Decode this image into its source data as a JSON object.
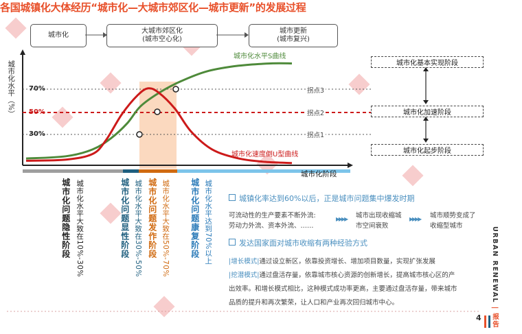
{
  "title": "各国城镇化大体经历“城市化—大城市郊区化—城市更新”的发展过程",
  "flow": {
    "box1": "城市化",
    "box2_line1": "大城市郊区化",
    "box2_line2": "(城市空心化)",
    "box3_line1": "城市更新",
    "box3_line2": "(城市复兴)"
  },
  "chart": {
    "ylabel": "城市化水平（%）",
    "xlabel": "城市化阶段",
    "y_ticks": [
      "70%",
      "50%",
      "30%"
    ],
    "s_curve_label": "城市化水平S曲线",
    "u_curve_label": "城市化速度倒U型曲线",
    "inflection_labels": [
      "拐点3",
      "拐点2",
      "拐点1"
    ]
  },
  "chart_data": {
    "type": "line",
    "title": "",
    "xlabel": "城市化阶段",
    "ylabel": "城市化水平（%）",
    "y_ticks": [
      30,
      50,
      70
    ],
    "series": [
      {
        "name": "城市化水平S曲线",
        "color": "#4e8a3a",
        "x": [
          0,
          15,
          25,
          32,
          38,
          43,
          50,
          58,
          68,
          80,
          92,
          100
        ],
        "y": [
          6,
          8,
          14,
          24,
          37,
          52,
          64,
          74,
          83,
          88,
          90,
          90
        ]
      },
      {
        "name": "城市化速度倒U型曲线",
        "color": "#cc1a1a",
        "x": [
          0,
          15,
          25,
          30,
          36,
          42,
          46,
          50,
          56,
          62,
          70,
          80,
          90,
          100
        ],
        "y": [
          4,
          5,
          10,
          22,
          45,
          62,
          68,
          64,
          50,
          30,
          14,
          6,
          3,
          2
        ]
      }
    ],
    "inflection_points": [
      {
        "label": "拐点1",
        "y": 30
      },
      {
        "label": "拐点2",
        "y": 50
      },
      {
        "label": "拐点3",
        "y": 70
      }
    ]
  },
  "right_stages": {
    "top": "城市化基本实现阶段",
    "middle": "城市化加速阶段",
    "bottom": "城市化起步阶段"
  },
  "phases": [
    {
      "title": "城市化问题隐性阶段",
      "desc": "城市化水平大致在10%-30%",
      "color": "#222222"
    },
    {
      "title": "城市化问题显性阶段",
      "desc": "城市化水平大致在30%-50%",
      "color": "#1f5f7f"
    },
    {
      "title": "城市化问题发作阶段",
      "desc": "城市化水平大致在50%-70%",
      "color": "#d06a10"
    },
    {
      "title": "城市化问题康复阶段",
      "desc": "城市化水平达到70%以上",
      "color": "#2a7ab8"
    }
  ],
  "colors": {
    "accent": "#e8502a",
    "blue": "#4a8fbf",
    "green": "#4e8a3a",
    "red": "#cc1a1a",
    "highlight": "#fbd9bf"
  },
  "section1": {
    "heading": "城镇化率达到60%以后，正是城市问题集中爆发时期",
    "col1_line1": "可流动性的生产要素不断外流:",
    "col1_line2": "劳动力外流、资本外流、……",
    "col2_line1": "城市出现收缩城",
    "col2_line2": "市空间衰败",
    "col3_line1": "城市顺势变成了",
    "col3_line2": "收缩型城市"
  },
  "section2": {
    "heading": "发达国家面对城市收缩有两种经验方式",
    "growth_tag": "增长模式",
    "growth_text": "通过设立新区，依靠投资增长、增加项目数量，实现扩张发展",
    "mining_tag": "挖潜模式",
    "mining_text": "通过盘活存量，依靠城市核心资源的创新增长，提高城市核心区的产",
    "line3": "出效率。和增长模式相比，这种模式成功率更高，主要通过盘活存量，带来城市",
    "line4": "品质的提升和再次繁荣，让人口和产业再次回归城市中心。"
  },
  "side": {
    "label": "URBAN RENEWAL",
    "tag": "报告"
  },
  "page_number": "4"
}
